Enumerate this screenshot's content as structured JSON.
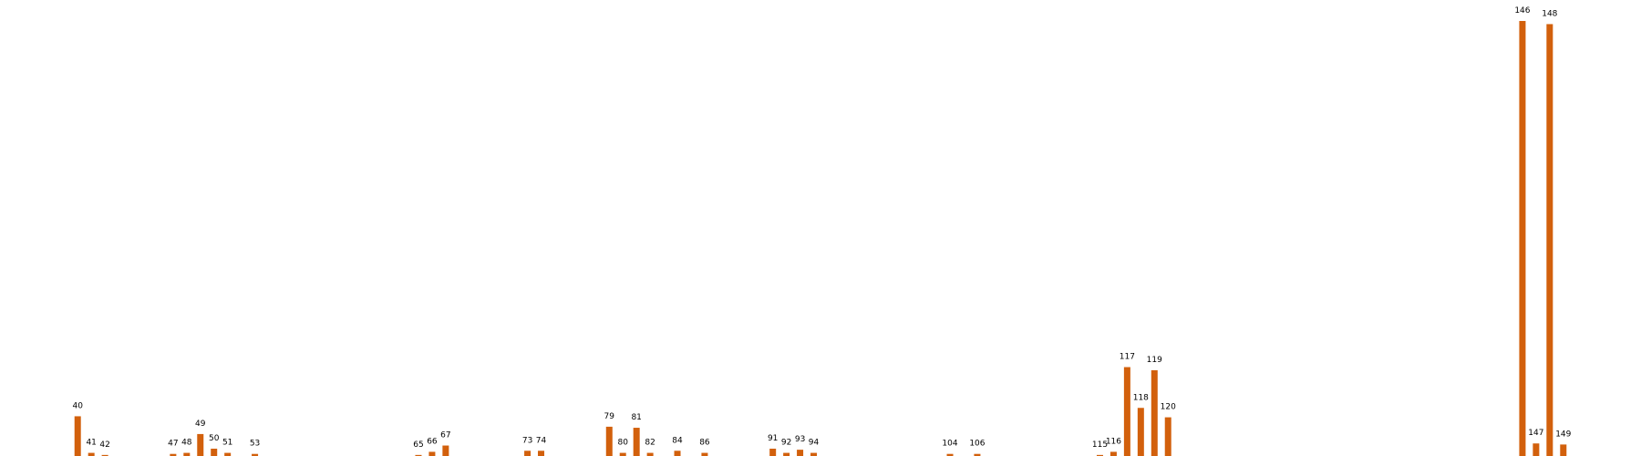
{
  "chart_data": {
    "type": "bar",
    "color": "#d2600c",
    "x": [
      40,
      41,
      42,
      47,
      48,
      49,
      50,
      51,
      53,
      65,
      66,
      67,
      73,
      74,
      79,
      80,
      81,
      82,
      84,
      86,
      91,
      92,
      93,
      94,
      104,
      106,
      115,
      116,
      117,
      118,
      119,
      120,
      146,
      147,
      148,
      149
    ],
    "values": [
      38,
      3,
      1,
      2,
      3,
      21,
      7,
      3,
      2,
      1,
      4,
      10,
      5,
      5,
      28,
      3,
      27,
      3,
      5,
      3,
      7,
      3,
      6,
      3,
      2,
      2,
      1,
      4,
      85,
      46,
      82,
      37,
      416,
      12,
      413,
      11
    ],
    "xlim": [
      34.3,
      154.7
    ],
    "ylim": [
      0,
      416
    ]
  }
}
